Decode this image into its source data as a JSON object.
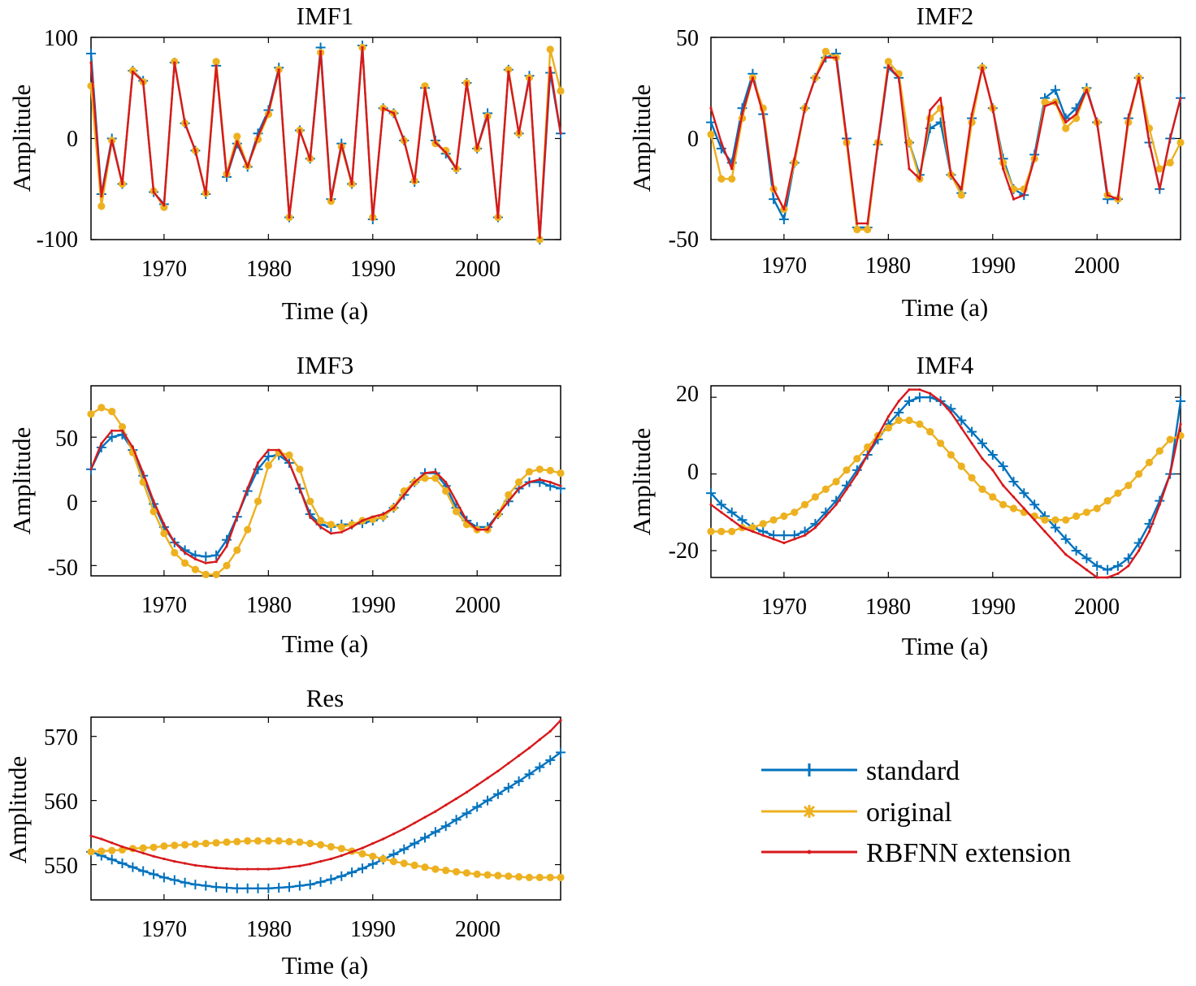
{
  "legend": {
    "entries": [
      {
        "label": "standard",
        "color": "#0072BD",
        "marker": "plus"
      },
      {
        "label": "original",
        "color": "#EDB120",
        "marker": "asterisk"
      },
      {
        "label": "RBFNN extension",
        "color": "#D7191C",
        "marker": "dot"
      }
    ]
  },
  "chart_data": [
    {
      "id": "imf1",
      "type": "line",
      "title": "IMF1",
      "xlabel": "Time (a)",
      "ylabel": "Amplitude",
      "xlim": [
        1963,
        2008
      ],
      "ylim": [
        -100,
        100
      ],
      "xticks": [
        1970,
        1980,
        1990,
        2000
      ],
      "xtick_labels": [
        "1970",
        "1980",
        "1990",
        "2000"
      ],
      "yticks": [
        -100,
        0,
        100
      ],
      "ytick_labels": [
        "-100",
        "0",
        "100"
      ],
      "x": [
        1963,
        1964,
        1965,
        1966,
        1967,
        1968,
        1969,
        1970,
        1971,
        1972,
        1973,
        1974,
        1975,
        1976,
        1977,
        1978,
        1979,
        1980,
        1981,
        1982,
        1983,
        1984,
        1985,
        1986,
        1987,
        1988,
        1989,
        1990,
        1991,
        1992,
        1993,
        1994,
        1995,
        1996,
        1997,
        1998,
        1999,
        2000,
        2001,
        2002,
        2003,
        2004,
        2005,
        2006,
        2007,
        2008
      ],
      "series": [
        {
          "name": "standard",
          "values": [
            84,
            -55,
            0,
            -45,
            67,
            57,
            -53,
            -65,
            75,
            15,
            -12,
            -55,
            72,
            -38,
            -5,
            -28,
            5,
            28,
            70,
            -78,
            8,
            -20,
            90,
            -60,
            -5,
            -45,
            92,
            -80,
            30,
            25,
            -2,
            -43,
            50,
            -2,
            -15,
            -30,
            55,
            -10,
            25,
            -78,
            68,
            5,
            62,
            -100,
            65,
            5
          ]
        },
        {
          "name": "original",
          "values": [
            52,
            -67,
            -2,
            -45,
            67,
            56,
            -52,
            -68,
            76,
            15,
            -12,
            -54,
            76,
            -35,
            2,
            -27,
            -1,
            24,
            68,
            -78,
            8,
            -20,
            85,
            -62,
            -8,
            -45,
            90,
            -78,
            30,
            25,
            -2,
            -42,
            52,
            -5,
            -12,
            -30,
            55,
            -10,
            22,
            -78,
            68,
            5,
            60,
            -100,
            88,
            47
          ]
        },
        {
          "name": "RBFNN extension",
          "values": [
            75,
            -57,
            -2,
            -45,
            66,
            56,
            -53,
            -66,
            75,
            15,
            -12,
            -55,
            72,
            -37,
            -3,
            -28,
            2,
            26,
            68,
            -78,
            8,
            -21,
            86,
            -61,
            -6,
            -45,
            90,
            -80,
            30,
            25,
            -2,
            -43,
            50,
            -4,
            -14,
            -30,
            55,
            -10,
            23,
            -78,
            66,
            5,
            60,
            -98,
            70,
            5
          ]
        }
      ]
    },
    {
      "id": "imf2",
      "type": "line",
      "title": "IMF2",
      "xlabel": "Time (a)",
      "ylabel": "Amplitude",
      "xlim": [
        1963,
        2008
      ],
      "ylim": [
        -50,
        50
      ],
      "xticks": [
        1970,
        1980,
        1990,
        2000
      ],
      "xtick_labels": [
        "1970",
        "1980",
        "1990",
        "2000"
      ],
      "yticks": [
        -50,
        0,
        50
      ],
      "ytick_labels": [
        "-50",
        "0",
        "50"
      ],
      "x": [
        1963,
        1964,
        1965,
        1966,
        1967,
        1968,
        1969,
        1970,
        1971,
        1972,
        1973,
        1974,
        1975,
        1976,
        1977,
        1978,
        1979,
        1980,
        1981,
        1982,
        1983,
        1984,
        1985,
        1986,
        1987,
        1988,
        1989,
        1990,
        1991,
        1992,
        1993,
        1994,
        1995,
        1996,
        1997,
        1998,
        1999,
        2000,
        2001,
        2002,
        2003,
        2004,
        2005,
        2006,
        2007,
        2008
      ],
      "series": [
        {
          "name": "standard",
          "values": [
            8,
            -5,
            -12,
            15,
            32,
            12,
            -30,
            -40,
            -12,
            15,
            30,
            40,
            42,
            0,
            -44,
            -44,
            -3,
            35,
            30,
            -2,
            -18,
            5,
            8,
            -18,
            -27,
            10,
            35,
            15,
            -10,
            -25,
            -28,
            -8,
            20,
            24,
            10,
            15,
            25,
            8,
            -30,
            -30,
            10,
            30,
            -2,
            -25,
            0,
            20
          ]
        },
        {
          "name": "original",
          "values": [
            2,
            -20,
            -20,
            10,
            30,
            15,
            -25,
            -35,
            -12,
            15,
            30,
            43,
            40,
            -2,
            -45,
            -45,
            -2,
            38,
            32,
            -2,
            -20,
            10,
            15,
            -18,
            -28,
            8,
            35,
            15,
            -12,
            -25,
            -25,
            -10,
            18,
            18,
            5,
            10,
            24,
            8,
            -28,
            -30,
            8,
            30,
            5,
            -15,
            -12,
            -2
          ]
        },
        {
          "name": "RBFNN extension",
          "values": [
            15,
            -2,
            -15,
            12,
            30,
            12,
            -25,
            -35,
            -10,
            15,
            30,
            40,
            40,
            0,
            -42,
            -42,
            -2,
            36,
            30,
            -15,
            -20,
            14,
            20,
            -18,
            -25,
            12,
            35,
            15,
            -15,
            -30,
            -28,
            -10,
            16,
            18,
            8,
            12,
            24,
            8,
            -28,
            -30,
            10,
            30,
            -2,
            -25,
            0,
            20
          ]
        }
      ]
    },
    {
      "id": "imf3",
      "type": "line",
      "title": "IMF3",
      "xlabel": "Time (a)",
      "ylabel": "Amplitude",
      "xlim": [
        1963,
        2008
      ],
      "ylim": [
        -58,
        90
      ],
      "xticks": [
        1970,
        1980,
        1990,
        2000
      ],
      "xtick_labels": [
        "1970",
        "1980",
        "1990",
        "2000"
      ],
      "yticks": [
        -50,
        0,
        50
      ],
      "ytick_labels": [
        "-50",
        "0",
        "50"
      ],
      "x": [
        1963,
        1964,
        1965,
        1966,
        1967,
        1968,
        1969,
        1970,
        1971,
        1972,
        1973,
        1974,
        1975,
        1976,
        1977,
        1978,
        1979,
        1980,
        1981,
        1982,
        1983,
        1984,
        1985,
        1986,
        1987,
        1988,
        1989,
        1990,
        1991,
        1992,
        1993,
        1994,
        1995,
        1996,
        1997,
        1998,
        1999,
        2000,
        2001,
        2002,
        2003,
        2004,
        2005,
        2006,
        2007,
        2008
      ],
      "series": [
        {
          "name": "standard",
          "values": [
            25,
            42,
            50,
            52,
            40,
            20,
            -2,
            -20,
            -32,
            -38,
            -42,
            -43,
            -42,
            -30,
            -12,
            8,
            25,
            35,
            36,
            30,
            10,
            -10,
            -18,
            -20,
            -18,
            -18,
            -17,
            -15,
            -12,
            -5,
            5,
            15,
            22,
            22,
            12,
            -5,
            -15,
            -20,
            -20,
            -10,
            0,
            10,
            15,
            15,
            12,
            10
          ]
        },
        {
          "name": "original",
          "values": [
            68,
            73,
            70,
            58,
            38,
            15,
            -8,
            -25,
            -40,
            -48,
            -53,
            -57,
            -57,
            -50,
            -38,
            -22,
            0,
            28,
            38,
            36,
            25,
            0,
            -15,
            -18,
            -20,
            -18,
            -15,
            -14,
            -12,
            -5,
            8,
            15,
            18,
            18,
            8,
            -8,
            -18,
            -22,
            -22,
            -10,
            5,
            15,
            23,
            25,
            24,
            22
          ]
        },
        {
          "name": "RBFNN extension",
          "values": [
            25,
            45,
            55,
            55,
            42,
            22,
            0,
            -18,
            -32,
            -40,
            -45,
            -48,
            -47,
            -35,
            -12,
            10,
            30,
            40,
            40,
            30,
            10,
            -12,
            -20,
            -25,
            -24,
            -20,
            -15,
            -12,
            -10,
            -5,
            5,
            15,
            22,
            23,
            15,
            0,
            -15,
            -22,
            -22,
            -10,
            0,
            10,
            15,
            17,
            15,
            12
          ]
        }
      ]
    },
    {
      "id": "imf4",
      "type": "line",
      "title": "IMF4",
      "xlabel": "Time (a)",
      "ylabel": "Amplitude",
      "xlim": [
        1963,
        2008
      ],
      "ylim": [
        -27,
        23
      ],
      "xticks": [
        1970,
        1980,
        1990,
        2000
      ],
      "xtick_labels": [
        "1970",
        "1980",
        "1990",
        "2000"
      ],
      "yticks": [
        -20,
        0,
        20
      ],
      "ytick_labels": [
        "-20",
        "0",
        "20"
      ],
      "x": [
        1963,
        1964,
        1965,
        1966,
        1967,
        1968,
        1969,
        1970,
        1971,
        1972,
        1973,
        1974,
        1975,
        1976,
        1977,
        1978,
        1979,
        1980,
        1981,
        1982,
        1983,
        1984,
        1985,
        1986,
        1987,
        1988,
        1989,
        1990,
        1991,
        1992,
        1993,
        1994,
        1995,
        1996,
        1997,
        1998,
        1999,
        2000,
        2001,
        2002,
        2003,
        2004,
        2005,
        2006,
        2007,
        2008
      ],
      "series": [
        {
          "name": "standard",
          "values": [
            -5,
            -8,
            -10,
            -12,
            -14,
            -15,
            -16,
            -16,
            -16,
            -15,
            -13,
            -10,
            -7,
            -3,
            1,
            5,
            9,
            13,
            16,
            19,
            20,
            20,
            19,
            17,
            14,
            11,
            8,
            5,
            2,
            -2,
            -5,
            -8,
            -11,
            -14,
            -17,
            -20,
            -22,
            -24,
            -25,
            -24,
            -22,
            -18,
            -13,
            -7,
            0,
            19
          ]
        },
        {
          "name": "original",
          "values": [
            -15,
            -15,
            -15,
            -14,
            -14,
            -13,
            -12,
            -11,
            -10,
            -8,
            -6,
            -4,
            -2,
            1,
            4,
            7,
            10,
            12,
            14,
            14,
            13,
            11,
            8,
            5,
            2,
            -1,
            -4,
            -6,
            -8,
            -9,
            -10,
            -11,
            -12,
            -12,
            -12,
            -11,
            -10,
            -9,
            -7,
            -5,
            -3,
            0,
            3,
            6,
            9,
            10
          ]
        },
        {
          "name": "RBFNN extension",
          "values": [
            -8,
            -10,
            -12,
            -14,
            -15,
            -16,
            -17,
            -18,
            -17,
            -16,
            -14,
            -11,
            -8,
            -4,
            0,
            5,
            10,
            15,
            19,
            22,
            22,
            21,
            19,
            16,
            12,
            8,
            4,
            1,
            -3,
            -6,
            -9,
            -12,
            -15,
            -18,
            -21,
            -23,
            -25,
            -27,
            -27,
            -26,
            -24,
            -20,
            -15,
            -8,
            0,
            13
          ]
        }
      ]
    },
    {
      "id": "res",
      "type": "line",
      "title": "Res",
      "xlabel": "Time (a)",
      "ylabel": "Amplitude",
      "xlim": [
        1963,
        2008
      ],
      "ylim": [
        544.5,
        573
      ],
      "xticks": [
        1970,
        1980,
        1990,
        2000
      ],
      "xtick_labels": [
        "1970",
        "1980",
        "1990",
        "2000"
      ],
      "yticks": [
        550,
        560,
        570
      ],
      "ytick_labels": [
        "550",
        "560",
        "570"
      ],
      "x": [
        1963,
        1964,
        1965,
        1966,
        1967,
        1968,
        1969,
        1970,
        1971,
        1972,
        1973,
        1974,
        1975,
        1976,
        1977,
        1978,
        1979,
        1980,
        1981,
        1982,
        1983,
        1984,
        1985,
        1986,
        1987,
        1988,
        1989,
        1990,
        1991,
        1992,
        1993,
        1994,
        1995,
        1996,
        1997,
        1998,
        1999,
        2000,
        2001,
        2002,
        2003,
        2004,
        2005,
        2006,
        2007,
        2008
      ],
      "series": [
        {
          "name": "standard",
          "values": [
            552,
            551.4,
            550.8,
            550.2,
            549.6,
            549,
            548.5,
            548,
            547.6,
            547.2,
            546.9,
            546.7,
            546.5,
            546.4,
            546.3,
            546.3,
            546.3,
            546.3,
            546.4,
            546.5,
            546.7,
            546.9,
            547.3,
            547.7,
            548.2,
            548.8,
            549.4,
            550.1,
            550.8,
            551.6,
            552.4,
            553.3,
            554.2,
            555.1,
            556,
            557,
            558,
            559,
            560,
            561,
            562,
            563,
            564.1,
            565.2,
            566.3,
            567.5
          ]
        },
        {
          "name": "original",
          "values": [
            552,
            552.1,
            552.2,
            552.3,
            552.5,
            552.6,
            552.7,
            552.9,
            553,
            553.1,
            553.2,
            553.3,
            553.4,
            553.5,
            553.6,
            553.7,
            553.7,
            553.7,
            553.7,
            553.6,
            553.5,
            553.3,
            553.1,
            552.8,
            552.5,
            552.1,
            551.7,
            551.3,
            550.9,
            550.5,
            550.2,
            549.9,
            549.6,
            549.3,
            549.1,
            548.9,
            548.7,
            548.5,
            548.4,
            548.3,
            548.2,
            548.1,
            548,
            548,
            548,
            548
          ]
        },
        {
          "name": "RBFNN extension",
          "values": [
            554.5,
            554,
            553.4,
            552.8,
            552.3,
            551.8,
            551.3,
            550.9,
            550.5,
            550.2,
            549.9,
            549.7,
            549.5,
            549.4,
            549.3,
            549.3,
            549.3,
            549.3,
            549.4,
            549.6,
            549.8,
            550.1,
            550.5,
            550.9,
            551.4,
            552,
            552.6,
            553.3,
            554,
            554.8,
            555.6,
            556.5,
            557.4,
            558.3,
            559.3,
            560.3,
            561.3,
            562.4,
            563.5,
            564.6,
            565.8,
            567,
            568.2,
            569.5,
            570.8,
            572.5
          ]
        }
      ]
    }
  ]
}
